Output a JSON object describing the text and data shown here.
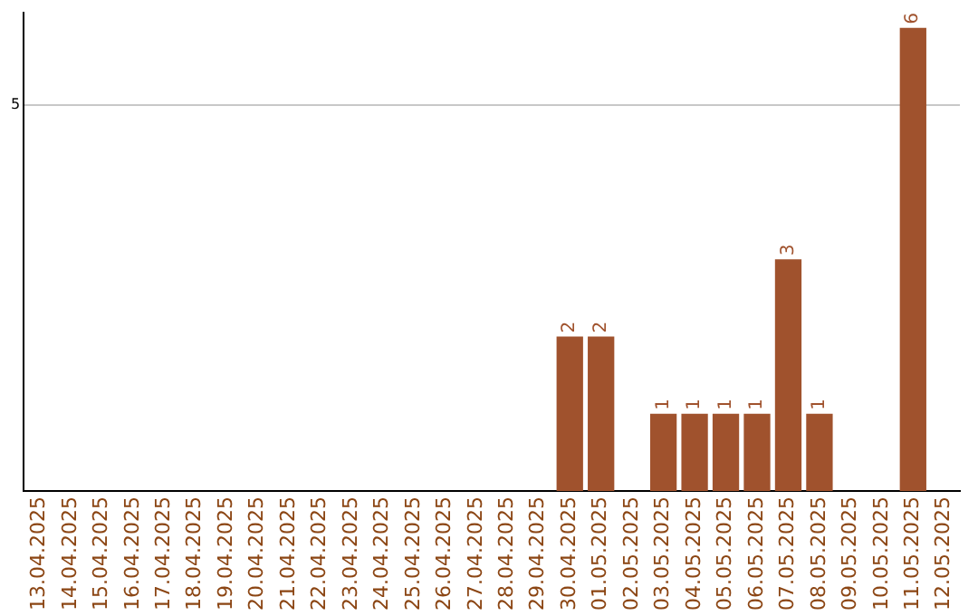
{
  "chart_data": {
    "type": "bar",
    "categories": [
      "13.04.2025",
      "14.04.2025",
      "15.04.2025",
      "16.04.2025",
      "17.04.2025",
      "18.04.2025",
      "19.04.2025",
      "20.04.2025",
      "21.04.2025",
      "22.04.2025",
      "23.04.2025",
      "24.04.2025",
      "25.04.2025",
      "26.04.2025",
      "27.04.2025",
      "28.04.2025",
      "29.04.2025",
      "30.04.2025",
      "01.05.2025",
      "02.05.2025",
      "03.05.2025",
      "04.05.2025",
      "05.05.2025",
      "06.05.2025",
      "07.05.2025",
      "08.05.2025",
      "09.05.2025",
      "10.05.2025",
      "11.05.2025",
      "12.05.2025"
    ],
    "values": [
      null,
      null,
      null,
      null,
      null,
      null,
      null,
      null,
      null,
      null,
      null,
      null,
      null,
      null,
      null,
      null,
      null,
      2,
      2,
      null,
      1,
      1,
      1,
      1,
      3,
      1,
      null,
      null,
      6,
      null
    ],
    "data_labels": true,
    "color": "#a0522d",
    "ylim": [
      0,
      6.2
    ],
    "yticks": [
      5
    ],
    "grid": "y",
    "legend": false
  }
}
